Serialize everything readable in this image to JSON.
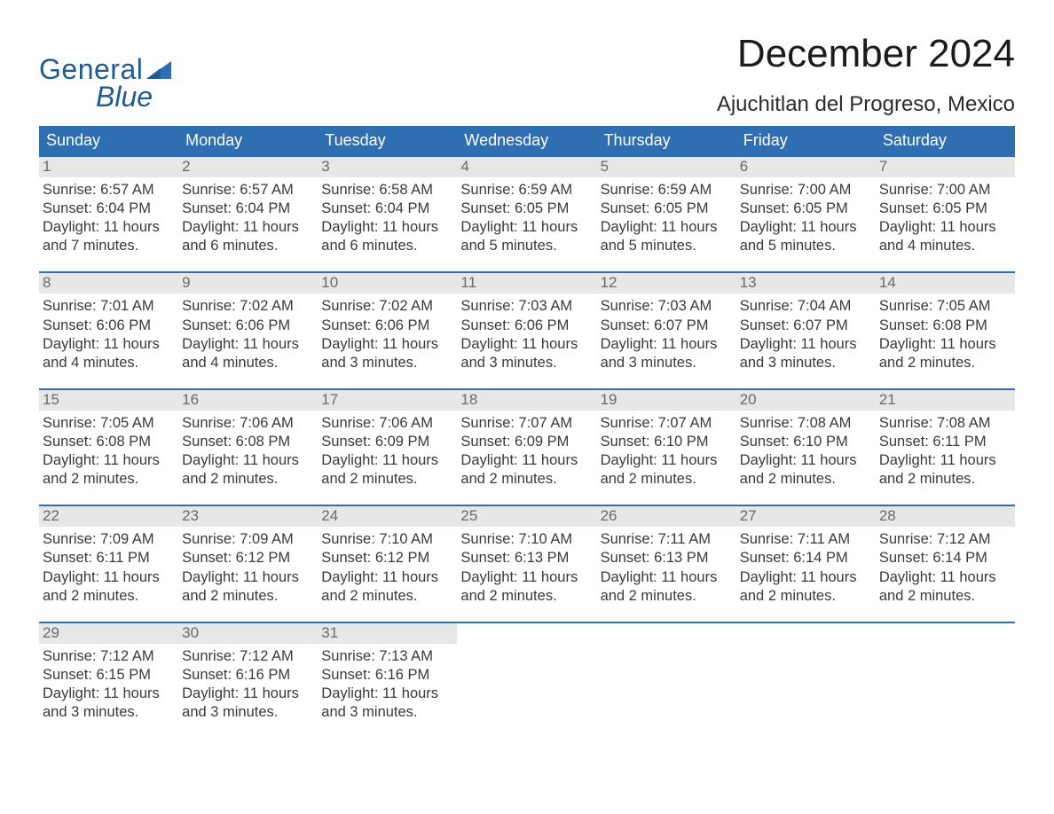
{
  "colors": {
    "accent": "#3b76b5",
    "header_bg": "#2f6eb1",
    "week_rule": "#2f6eb1",
    "daynum_bg": "#e7e7e7",
    "daynum_text": "#6a6a6a",
    "body_text": "#3a3a3a",
    "page_bg": "#ffffff",
    "logo_text": "#1e5a93"
  },
  "typography": {
    "month_title_pt": 33,
    "location_pt": 18,
    "weekday_pt": 14,
    "daynum_pt": 13,
    "body_pt": 12,
    "font_family": "Arial"
  },
  "logo": {
    "line1": "General",
    "line2": "Blue"
  },
  "title": "December 2024",
  "location": "Ajuchitlan del Progreso, Mexico",
  "weekdays": [
    "Sunday",
    "Monday",
    "Tuesday",
    "Wednesday",
    "Thursday",
    "Friday",
    "Saturday"
  ],
  "weeks": [
    [
      {
        "n": "1",
        "sunrise": "Sunrise: 6:57 AM",
        "sunset": "Sunset: 6:04 PM",
        "day1": "Daylight: 11 hours",
        "day2": "and 7 minutes."
      },
      {
        "n": "2",
        "sunrise": "Sunrise: 6:57 AM",
        "sunset": "Sunset: 6:04 PM",
        "day1": "Daylight: 11 hours",
        "day2": "and 6 minutes."
      },
      {
        "n": "3",
        "sunrise": "Sunrise: 6:58 AM",
        "sunset": "Sunset: 6:04 PM",
        "day1": "Daylight: 11 hours",
        "day2": "and 6 minutes."
      },
      {
        "n": "4",
        "sunrise": "Sunrise: 6:59 AM",
        "sunset": "Sunset: 6:05 PM",
        "day1": "Daylight: 11 hours",
        "day2": "and 5 minutes."
      },
      {
        "n": "5",
        "sunrise": "Sunrise: 6:59 AM",
        "sunset": "Sunset: 6:05 PM",
        "day1": "Daylight: 11 hours",
        "day2": "and 5 minutes."
      },
      {
        "n": "6",
        "sunrise": "Sunrise: 7:00 AM",
        "sunset": "Sunset: 6:05 PM",
        "day1": "Daylight: 11 hours",
        "day2": "and 5 minutes."
      },
      {
        "n": "7",
        "sunrise": "Sunrise: 7:00 AM",
        "sunset": "Sunset: 6:05 PM",
        "day1": "Daylight: 11 hours",
        "day2": "and 4 minutes."
      }
    ],
    [
      {
        "n": "8",
        "sunrise": "Sunrise: 7:01 AM",
        "sunset": "Sunset: 6:06 PM",
        "day1": "Daylight: 11 hours",
        "day2": "and 4 minutes."
      },
      {
        "n": "9",
        "sunrise": "Sunrise: 7:02 AM",
        "sunset": "Sunset: 6:06 PM",
        "day1": "Daylight: 11 hours",
        "day2": "and 4 minutes."
      },
      {
        "n": "10",
        "sunrise": "Sunrise: 7:02 AM",
        "sunset": "Sunset: 6:06 PM",
        "day1": "Daylight: 11 hours",
        "day2": "and 3 minutes."
      },
      {
        "n": "11",
        "sunrise": "Sunrise: 7:03 AM",
        "sunset": "Sunset: 6:06 PM",
        "day1": "Daylight: 11 hours",
        "day2": "and 3 minutes."
      },
      {
        "n": "12",
        "sunrise": "Sunrise: 7:03 AM",
        "sunset": "Sunset: 6:07 PM",
        "day1": "Daylight: 11 hours",
        "day2": "and 3 minutes."
      },
      {
        "n": "13",
        "sunrise": "Sunrise: 7:04 AM",
        "sunset": "Sunset: 6:07 PM",
        "day1": "Daylight: 11 hours",
        "day2": "and 3 minutes."
      },
      {
        "n": "14",
        "sunrise": "Sunrise: 7:05 AM",
        "sunset": "Sunset: 6:08 PM",
        "day1": "Daylight: 11 hours",
        "day2": "and 2 minutes."
      }
    ],
    [
      {
        "n": "15",
        "sunrise": "Sunrise: 7:05 AM",
        "sunset": "Sunset: 6:08 PM",
        "day1": "Daylight: 11 hours",
        "day2": "and 2 minutes."
      },
      {
        "n": "16",
        "sunrise": "Sunrise: 7:06 AM",
        "sunset": "Sunset: 6:08 PM",
        "day1": "Daylight: 11 hours",
        "day2": "and 2 minutes."
      },
      {
        "n": "17",
        "sunrise": "Sunrise: 7:06 AM",
        "sunset": "Sunset: 6:09 PM",
        "day1": "Daylight: 11 hours",
        "day2": "and 2 minutes."
      },
      {
        "n": "18",
        "sunrise": "Sunrise: 7:07 AM",
        "sunset": "Sunset: 6:09 PM",
        "day1": "Daylight: 11 hours",
        "day2": "and 2 minutes."
      },
      {
        "n": "19",
        "sunrise": "Sunrise: 7:07 AM",
        "sunset": "Sunset: 6:10 PM",
        "day1": "Daylight: 11 hours",
        "day2": "and 2 minutes."
      },
      {
        "n": "20",
        "sunrise": "Sunrise: 7:08 AM",
        "sunset": "Sunset: 6:10 PM",
        "day1": "Daylight: 11 hours",
        "day2": "and 2 minutes."
      },
      {
        "n": "21",
        "sunrise": "Sunrise: 7:08 AM",
        "sunset": "Sunset: 6:11 PM",
        "day1": "Daylight: 11 hours",
        "day2": "and 2 minutes."
      }
    ],
    [
      {
        "n": "22",
        "sunrise": "Sunrise: 7:09 AM",
        "sunset": "Sunset: 6:11 PM",
        "day1": "Daylight: 11 hours",
        "day2": "and 2 minutes."
      },
      {
        "n": "23",
        "sunrise": "Sunrise: 7:09 AM",
        "sunset": "Sunset: 6:12 PM",
        "day1": "Daylight: 11 hours",
        "day2": "and 2 minutes."
      },
      {
        "n": "24",
        "sunrise": "Sunrise: 7:10 AM",
        "sunset": "Sunset: 6:12 PM",
        "day1": "Daylight: 11 hours",
        "day2": "and 2 minutes."
      },
      {
        "n": "25",
        "sunrise": "Sunrise: 7:10 AM",
        "sunset": "Sunset: 6:13 PM",
        "day1": "Daylight: 11 hours",
        "day2": "and 2 minutes."
      },
      {
        "n": "26",
        "sunrise": "Sunrise: 7:11 AM",
        "sunset": "Sunset: 6:13 PM",
        "day1": "Daylight: 11 hours",
        "day2": "and 2 minutes."
      },
      {
        "n": "27",
        "sunrise": "Sunrise: 7:11 AM",
        "sunset": "Sunset: 6:14 PM",
        "day1": "Daylight: 11 hours",
        "day2": "and 2 minutes."
      },
      {
        "n": "28",
        "sunrise": "Sunrise: 7:12 AM",
        "sunset": "Sunset: 6:14 PM",
        "day1": "Daylight: 11 hours",
        "day2": "and 2 minutes."
      }
    ],
    [
      {
        "n": "29",
        "sunrise": "Sunrise: 7:12 AM",
        "sunset": "Sunset: 6:15 PM",
        "day1": "Daylight: 11 hours",
        "day2": "and 3 minutes."
      },
      {
        "n": "30",
        "sunrise": "Sunrise: 7:12 AM",
        "sunset": "Sunset: 6:16 PM",
        "day1": "Daylight: 11 hours",
        "day2": "and 3 minutes."
      },
      {
        "n": "31",
        "sunrise": "Sunrise: 7:13 AM",
        "sunset": "Sunset: 6:16 PM",
        "day1": "Daylight: 11 hours",
        "day2": "and 3 minutes."
      },
      null,
      null,
      null,
      null
    ]
  ]
}
